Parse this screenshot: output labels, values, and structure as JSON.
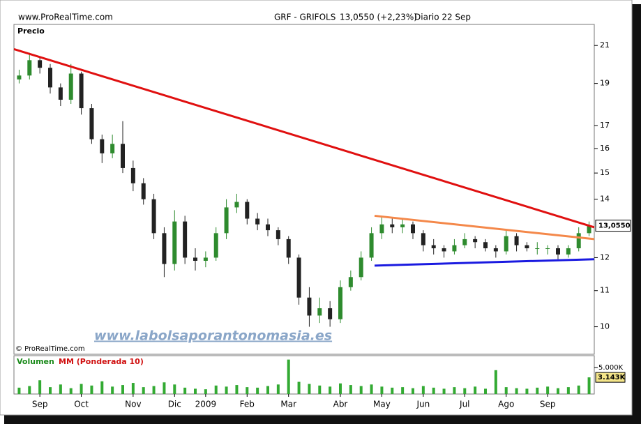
{
  "header": {
    "site": "www.ProRealTime.com",
    "instrument": "GRF - GRIFOLS",
    "quote": "13,0550 (+2,23%)",
    "period": "Diario  22 Sep"
  },
  "chart_data": {
    "type": "candlestick",
    "price_label": "Precio",
    "copyright": "© ProRealTime.com",
    "watermark": "www.labolsaporantonomasia.es",
    "categories": [
      null,
      null,
      "Sep",
      null,
      null,
      null,
      "Oct",
      null,
      null,
      null,
      null,
      "Nov",
      null,
      null,
      null,
      "Dic",
      null,
      null,
      "2009",
      null,
      null,
      null,
      "Feb",
      null,
      null,
      null,
      "Mar",
      null,
      null,
      null,
      null,
      "Abr",
      null,
      null,
      null,
      "May",
      null,
      null,
      null,
      "Jun",
      null,
      null,
      null,
      "Jul",
      null,
      null,
      null,
      "Ago",
      null,
      null,
      null,
      "Sep",
      null,
      null,
      null,
      null
    ],
    "open": [
      19.2,
      19.4,
      20.2,
      19.8,
      18.8,
      18.2,
      19.5,
      17.8,
      16.4,
      15.8,
      16.2,
      15.2,
      14.6,
      14.0,
      12.8,
      11.8,
      13.2,
      12.0,
      11.9,
      12.0,
      12.8,
      13.7,
      13.9,
      13.3,
      13.1,
      12.9,
      12.6,
      12.0,
      10.8,
      10.3,
      10.5,
      10.2,
      11.1,
      11.4,
      12.0,
      12.8,
      13.1,
      13.0,
      13.1,
      12.8,
      12.4,
      12.3,
      12.2,
      12.4,
      12.6,
      12.5,
      12.3,
      12.2,
      12.7,
      12.4,
      12.3,
      12.3,
      12.3,
      12.1,
      12.3,
      12.8
    ],
    "high": [
      19.7,
      20.6,
      20.4,
      20.0,
      19.0,
      20.0,
      19.6,
      18.0,
      16.6,
      16.6,
      17.2,
      15.5,
      14.8,
      14.2,
      13.0,
      13.6,
      13.4,
      12.3,
      12.2,
      13.0,
      14.0,
      14.2,
      14.0,
      13.5,
      13.3,
      13.0,
      12.7,
      12.1,
      11.1,
      10.8,
      10.7,
      11.3,
      11.6,
      12.2,
      13.0,
      13.4,
      13.3,
      13.3,
      13.2,
      12.9,
      12.6,
      12.4,
      12.6,
      12.8,
      12.7,
      12.6,
      12.4,
      12.9,
      12.8,
      12.5,
      12.5,
      12.4,
      12.4,
      12.4,
      13.0,
      13.2
    ],
    "low": [
      19.0,
      19.2,
      19.5,
      18.5,
      17.9,
      18.0,
      17.5,
      16.2,
      15.4,
      15.6,
      15.0,
      14.3,
      13.8,
      12.6,
      11.4,
      11.6,
      11.8,
      11.6,
      11.7,
      11.9,
      12.6,
      13.5,
      13.1,
      12.9,
      12.7,
      12.4,
      11.8,
      10.6,
      10.0,
      10.1,
      10.0,
      10.1,
      11.0,
      11.3,
      11.9,
      12.6,
      12.8,
      12.8,
      12.6,
      12.2,
      12.1,
      12.0,
      12.1,
      12.3,
      12.3,
      12.2,
      12.0,
      12.1,
      12.2,
      12.2,
      12.1,
      12.1,
      11.95,
      12.0,
      12.2,
      12.7
    ],
    "close": [
      19.4,
      20.2,
      19.8,
      18.8,
      18.2,
      19.5,
      17.8,
      16.4,
      15.8,
      16.2,
      15.2,
      14.6,
      14.0,
      12.8,
      11.8,
      13.2,
      12.0,
      11.9,
      12.0,
      12.8,
      13.7,
      13.9,
      13.3,
      13.1,
      12.9,
      12.6,
      12.0,
      10.8,
      10.3,
      10.5,
      10.2,
      11.1,
      11.4,
      12.0,
      12.8,
      13.1,
      13.0,
      13.1,
      12.8,
      12.4,
      12.3,
      12.2,
      12.4,
      12.6,
      12.5,
      12.3,
      12.2,
      12.7,
      12.4,
      12.3,
      12.3,
      12.3,
      12.1,
      12.3,
      12.8,
      13.055
    ],
    "last_label": "13,0550",
    "up_color": "#2e8b2e",
    "down_color": "#222222",
    "log_scale": true,
    "ylim": [
      9.3,
      22.2
    ],
    "yticks": [
      10,
      11,
      12,
      14,
      15,
      16,
      17,
      19,
      21
    ],
    "trend_lines": [
      {
        "color": "#e01010",
        "from": [
          -0.5,
          20.8
        ],
        "to": [
          55.5,
          13.0
        ]
      },
      {
        "color": "#f4884a",
        "from": [
          34.3,
          13.4
        ],
        "to": [
          55.5,
          12.6
        ]
      },
      {
        "color": "#1a1ae0",
        "from": [
          34.3,
          11.75
        ],
        "to": [
          55.5,
          11.95
        ]
      }
    ],
    "volume": {
      "label": "Volumen",
      "average_label": "MM (Ponderada 10)",
      "color": "#33aa33",
      "values": [
        1200,
        1500,
        2600,
        1300,
        1800,
        1100,
        1900,
        1600,
        2400,
        1400,
        1700,
        2100,
        1300,
        1500,
        2200,
        1800,
        1200,
        1000,
        900,
        1600,
        1400,
        1700,
        1300,
        1200,
        1500,
        1800,
        6500,
        2300,
        1900,
        1600,
        1400,
        2000,
        1700,
        1500,
        1800,
        1400,
        1200,
        1300,
        1100,
        1500,
        1200,
        1000,
        1300,
        1100,
        1400,
        1000,
        4500,
        1300,
        1100,
        1000,
        1200,
        1400,
        1100,
        1300,
        1600,
        3143
      ],
      "last_label": "3.143K",
      "ylim": [
        0,
        7240
      ],
      "yticks": [
        {
          "value": 5000,
          "label": "5.000K"
        }
      ]
    }
  }
}
